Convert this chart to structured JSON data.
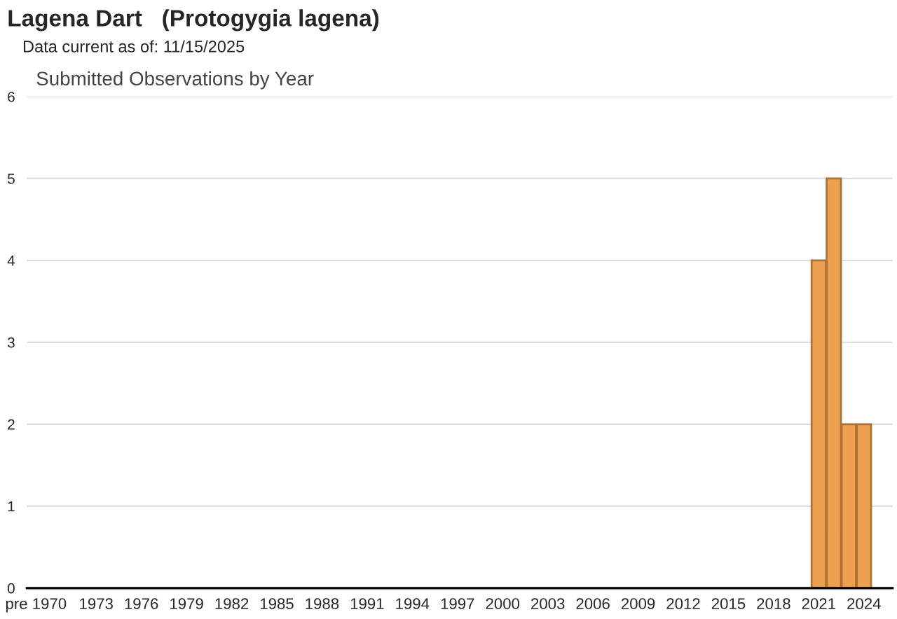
{
  "chart_data": {
    "type": "bar",
    "title": "Lagena Dart   (Protogygia lagena)",
    "subtitle": "Data current as of: 11/15/2025",
    "annotations": [
      "Submitted Observations by Year"
    ],
    "categories": [
      "pre 1970",
      null,
      null,
      null,
      "1973",
      null,
      null,
      "1976",
      null,
      null,
      "1979",
      null,
      null,
      "1982",
      null,
      null,
      "1985",
      null,
      null,
      "1988",
      null,
      null,
      "1991",
      null,
      null,
      "1994",
      null,
      null,
      "1997",
      null,
      null,
      "2000",
      null,
      null,
      "2003",
      null,
      null,
      "2006",
      null,
      null,
      "2009",
      null,
      null,
      "2012",
      null,
      null,
      "2015",
      null,
      null,
      "2018",
      null,
      null,
      "2021",
      null,
      null,
      "2024",
      null
    ],
    "values": [
      0,
      0,
      0,
      0,
      0,
      0,
      0,
      0,
      0,
      0,
      0,
      0,
      0,
      0,
      0,
      0,
      0,
      0,
      0,
      0,
      0,
      0,
      0,
      0,
      0,
      0,
      0,
      0,
      0,
      0,
      0,
      0,
      0,
      0,
      0,
      0,
      0,
      0,
      0,
      0,
      0,
      0,
      0,
      0,
      0,
      0,
      0,
      0,
      0,
      0,
      0,
      0,
      4,
      5,
      2,
      2,
      0
    ],
    "color": "#eda04f",
    "ylim": [
      0,
      6
    ],
    "yticks": [
      0,
      1,
      2,
      3,
      4,
      5,
      6
    ],
    "grid": "y",
    "legend": false
  }
}
